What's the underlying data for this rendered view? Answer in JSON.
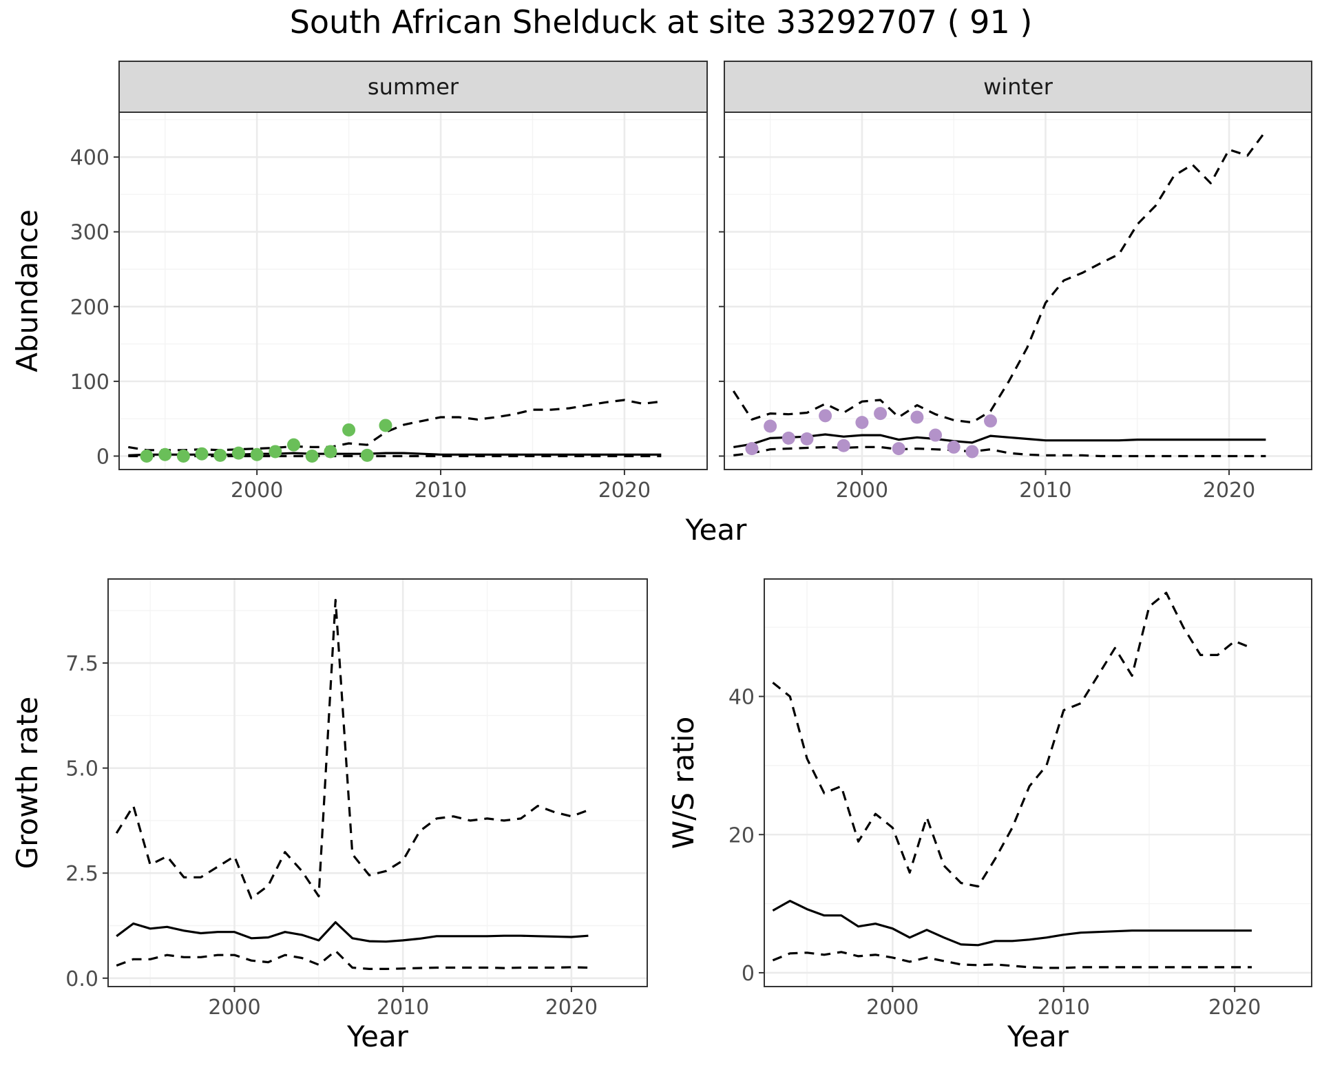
{
  "title": "South African Shelduck at site 33292707 ( 91 )",
  "colors": {
    "summer_points": "#6abf59",
    "winter_points": "#b392c9"
  },
  "chart_data": [
    {
      "id": "abundance-summer",
      "type": "line",
      "strip": "summer",
      "ylabel": "Abundance",
      "xlabel": "Year",
      "xlim": [
        1992.5,
        2024.5
      ],
      "ylim": [
        -18,
        460
      ],
      "xticks": [
        2000,
        2010,
        2020
      ],
      "yticks": [
        0,
        100,
        200,
        300,
        400
      ],
      "x": [
        1993,
        1994,
        1995,
        1996,
        1997,
        1998,
        1999,
        2000,
        2001,
        2002,
        2003,
        2004,
        2005,
        2006,
        2007,
        2008,
        2009,
        2010,
        2011,
        2012,
        2013,
        2014,
        2015,
        2016,
        2017,
        2018,
        2019,
        2020,
        2021,
        2022
      ],
      "series": [
        {
          "role": "estimate",
          "style": "solid",
          "values": [
            1,
            2,
            2,
            2,
            2,
            2,
            2,
            3,
            3,
            4,
            3,
            3,
            3,
            3,
            4,
            4,
            3,
            2,
            2,
            2,
            2,
            2,
            2,
            2,
            2,
            2,
            2,
            2,
            2,
            2
          ]
        },
        {
          "role": "upper",
          "style": "dashed",
          "values": [
            12,
            8,
            8,
            8,
            9,
            8,
            9,
            10,
            11,
            13,
            12,
            12,
            17,
            15,
            32,
            42,
            47,
            52,
            52,
            49,
            52,
            56,
            62,
            62,
            64,
            68,
            72,
            75,
            70,
            73
          ]
        },
        {
          "role": "lower",
          "style": "dashed",
          "values": [
            0,
            0,
            0,
            0,
            0,
            0,
            0,
            0,
            0,
            0,
            0,
            0,
            0,
            0,
            0,
            0,
            0,
            0,
            0,
            0,
            0,
            0,
            0,
            0,
            0,
            0,
            0,
            0,
            0,
            0
          ]
        }
      ],
      "points": {
        "x": [
          1994,
          1995,
          1996,
          1997,
          1998,
          1999,
          2000,
          2001,
          2002,
          2003,
          2004,
          2005,
          2006,
          2007
        ],
        "y": [
          0,
          2,
          0,
          3,
          1,
          4,
          2,
          6,
          15,
          0,
          6,
          35,
          1,
          41
        ]
      }
    },
    {
      "id": "abundance-winter",
      "type": "line",
      "strip": "winter",
      "xlim": [
        1992.5,
        2024.5
      ],
      "ylim": [
        -18,
        460
      ],
      "xticks": [
        2000,
        2010,
        2020
      ],
      "yticks": [
        0,
        100,
        200,
        300,
        400
      ],
      "x": [
        1993,
        1994,
        1995,
        1996,
        1997,
        1998,
        1999,
        2000,
        2001,
        2002,
        2003,
        2004,
        2005,
        2006,
        2007,
        2008,
        2009,
        2010,
        2011,
        2012,
        2013,
        2014,
        2015,
        2016,
        2017,
        2018,
        2019,
        2020,
        2021,
        2022
      ],
      "series": [
        {
          "role": "estimate",
          "style": "solid",
          "values": [
            12,
            16,
            24,
            25,
            26,
            29,
            26,
            28,
            28,
            22,
            25,
            23,
            20,
            18,
            27,
            25,
            23,
            21,
            21,
            21,
            21,
            21,
            22,
            22,
            22,
            22,
            22,
            22,
            22,
            22
          ]
        },
        {
          "role": "upper",
          "style": "dashed",
          "values": [
            87,
            49,
            57,
            56,
            58,
            70,
            58,
            73,
            75,
            52,
            68,
            56,
            48,
            45,
            60,
            100,
            145,
            205,
            235,
            245,
            258,
            270,
            310,
            335,
            375,
            390,
            365,
            410,
            402,
            435
          ]
        },
        {
          "role": "lower",
          "style": "dashed",
          "values": [
            1,
            4,
            9,
            10,
            11,
            12,
            11,
            12,
            12,
            9,
            10,
            9,
            8,
            6,
            9,
            4,
            2,
            1,
            1,
            1,
            0,
            0,
            0,
            0,
            0,
            0,
            0,
            0,
            0,
            0
          ]
        }
      ],
      "points": {
        "x": [
          1994,
          1995,
          1996,
          1997,
          1998,
          1999,
          2000,
          2001,
          2002,
          2003,
          2004,
          2005,
          2006,
          2007
        ],
        "y": [
          10,
          40,
          24,
          23,
          54,
          14,
          45,
          57,
          10,
          52,
          28,
          12,
          6,
          47
        ]
      }
    },
    {
      "id": "growth-rate",
      "type": "line",
      "ylabel": "Growth rate",
      "xlabel": "Year",
      "xlim": [
        1992.5,
        2024.5
      ],
      "ylim": [
        -0.2,
        9.5
      ],
      "xticks": [
        2000,
        2010,
        2020
      ],
      "yticks": [
        0.0,
        2.5,
        5.0,
        7.5
      ],
      "ytick_labels": [
        "0.0",
        "2.5",
        "5.0",
        "7.5"
      ],
      "x": [
        1993,
        1994,
        1995,
        1996,
        1997,
        1998,
        1999,
        2000,
        2001,
        2002,
        2003,
        2004,
        2005,
        2006,
        2007,
        2008,
        2009,
        2010,
        2011,
        2012,
        2013,
        2014,
        2015,
        2016,
        2017,
        2018,
        2019,
        2020,
        2021
      ],
      "series": [
        {
          "role": "estimate",
          "style": "solid",
          "values": [
            1.0,
            1.3,
            1.18,
            1.22,
            1.13,
            1.07,
            1.1,
            1.1,
            0.95,
            0.97,
            1.1,
            1.03,
            0.9,
            1.33,
            0.95,
            0.88,
            0.87,
            0.9,
            0.94,
            1.0,
            1.0,
            1.0,
            1.0,
            1.01,
            1.01,
            1.0,
            0.99,
            0.98,
            1.01
          ]
        },
        {
          "role": "upper",
          "style": "dashed",
          "values": [
            3.45,
            4.1,
            2.7,
            2.9,
            2.4,
            2.4,
            2.65,
            2.9,
            1.9,
            2.2,
            3.0,
            2.55,
            1.95,
            9.0,
            2.95,
            2.45,
            2.55,
            2.8,
            3.5,
            3.8,
            3.85,
            3.75,
            3.8,
            3.75,
            3.8,
            4.1,
            3.95,
            3.85,
            4.0
          ]
        },
        {
          "role": "lower",
          "style": "dashed",
          "values": [
            0.3,
            0.45,
            0.45,
            0.55,
            0.5,
            0.5,
            0.55,
            0.55,
            0.42,
            0.38,
            0.55,
            0.48,
            0.32,
            0.65,
            0.25,
            0.22,
            0.22,
            0.23,
            0.24,
            0.25,
            0.25,
            0.25,
            0.25,
            0.24,
            0.25,
            0.25,
            0.25,
            0.26,
            0.25
          ]
        }
      ]
    },
    {
      "id": "ws-ratio",
      "type": "line",
      "ylabel": "W/S ratio",
      "xlabel": "Year",
      "xlim": [
        1992.5,
        2024.5
      ],
      "ylim": [
        -2,
        57
      ],
      "xticks": [
        2000,
        2010,
        2020
      ],
      "yticks": [
        0,
        20,
        40
      ],
      "x": [
        1993,
        1994,
        1995,
        1996,
        1997,
        1998,
        1999,
        2000,
        2001,
        2002,
        2003,
        2004,
        2005,
        2006,
        2007,
        2008,
        2009,
        2010,
        2011,
        2012,
        2013,
        2014,
        2015,
        2016,
        2017,
        2018,
        2019,
        2020,
        2021
      ],
      "series": [
        {
          "role": "estimate",
          "style": "solid",
          "values": [
            9,
            10.4,
            9.2,
            8.3,
            8.3,
            6.7,
            7.1,
            6.4,
            5.1,
            6.2,
            5.1,
            4.1,
            4.0,
            4.6,
            4.6,
            4.8,
            5.1,
            5.5,
            5.8,
            5.9,
            6.0,
            6.1,
            6.1,
            6.1,
            6.1,
            6.1,
            6.1,
            6.1,
            6.1
          ]
        },
        {
          "role": "upper",
          "style": "dashed",
          "values": [
            42,
            40,
            31,
            26,
            27,
            19,
            23,
            21,
            14.5,
            22.5,
            15.5,
            13,
            12.5,
            16.5,
            21,
            27,
            30,
            38,
            39,
            43,
            47,
            43,
            53,
            55,
            50,
            46,
            46,
            48,
            47
          ]
        },
        {
          "role": "lower",
          "style": "dashed",
          "values": [
            1.8,
            2.8,
            2.9,
            2.6,
            3.0,
            2.4,
            2.6,
            2.2,
            1.6,
            2.2,
            1.7,
            1.2,
            1.1,
            1.2,
            1.0,
            0.8,
            0.7,
            0.7,
            0.8,
            0.8,
            0.8,
            0.8,
            0.8,
            0.8,
            0.8,
            0.8,
            0.8,
            0.8,
            0.8
          ]
        }
      ]
    }
  ]
}
